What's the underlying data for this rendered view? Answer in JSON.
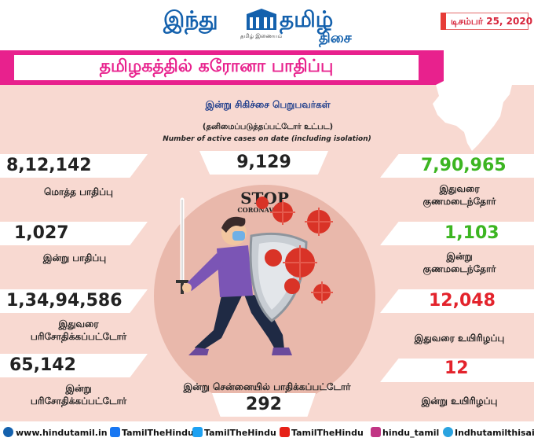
{
  "header": {
    "logo_left": "இந்து",
    "logo_right": "தமிழ்",
    "logo_sub": "திசை",
    "logo_tag": "தமிழ் இணையம்",
    "date": "டிசம்பர் 25, 2020",
    "title": "தமிழகத்தில் கரோனா பாதிப்பு"
  },
  "center": {
    "heading": "இன்று சிகிச்சை பெறுபவர்கள்",
    "subheading": "(தனிமைப்படுத்தப்பட்டோர் உட்பட)",
    "english": "Number of active cases on date (including isolation)",
    "active_value": "9,129",
    "stop_title": "STOP",
    "stop_sub": "CORONAVIRUS",
    "chennai_label": "இன்று சென்னையில் பாதிக்கப்பட்டோர்",
    "chennai_value": "292"
  },
  "left": [
    {
      "value": "8,12,142",
      "label": "மொத்த பாதிப்பு"
    },
    {
      "value": "1,027",
      "label": "இன்று பாதிப்பு"
    },
    {
      "value": "1,34,94,586",
      "label1": "இதுவரை",
      "label2": "பரிசோதிக்கப்பட்டோர்"
    },
    {
      "value": "65,142",
      "label1": "இன்று",
      "label2": "பரிசோதிக்கப்பட்டோர்"
    }
  ],
  "right": [
    {
      "value": "7,90,965",
      "label1": "இதுவரை",
      "label2": "குணமடைந்தோர்"
    },
    {
      "value": "1,103",
      "label1": "இன்று",
      "label2": "குணமடைந்தோர்"
    },
    {
      "value": "12,048",
      "label": "இதுவரை உயிரிழப்பு"
    },
    {
      "value": "12",
      "label": "இன்று உயிரிழப்பு"
    }
  ],
  "footer": {
    "website": "www.hindutamil.in",
    "facebook": "TamilTheHindu",
    "twitter": "TamilTheHindu",
    "youtube": "TamilTheHindu",
    "instagram": "hindu_tamil",
    "telegram": "Indhutamilthisai"
  },
  "colors": {
    "banner_pink": "#e8218d",
    "logo_blue": "#1461ad",
    "recovered_green": "#3cb521",
    "death_red": "#e3232c",
    "background_peach": "#f8d9d1"
  }
}
